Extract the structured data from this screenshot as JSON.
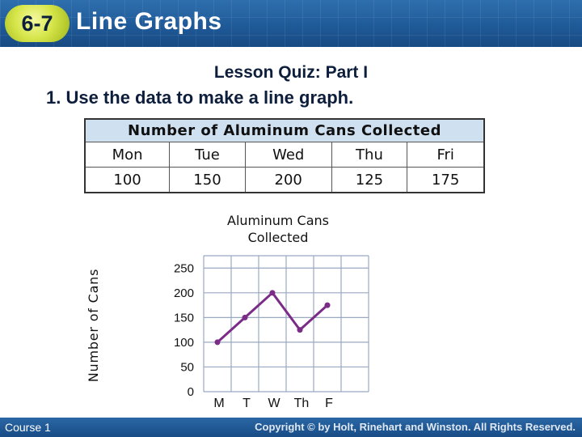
{
  "header": {
    "lesson_number": "6-7",
    "lesson_title": "Line Graphs"
  },
  "quiz": {
    "heading": "Lesson Quiz: Part I",
    "question": "1. Use the data to make a line graph."
  },
  "table": {
    "caption": "Number of Aluminum Cans Collected",
    "days": [
      "Mon",
      "Tue",
      "Wed",
      "Thu",
      "Fri"
    ],
    "values": [
      "100",
      "150",
      "200",
      "125",
      "175"
    ]
  },
  "chart_data": {
    "type": "line",
    "title_lines": [
      "Aluminum Cans",
      "Collected"
    ],
    "ylabel": "Number of Cans",
    "xlabel": "",
    "categories": [
      "M",
      "T",
      "W",
      "Th",
      "F"
    ],
    "values": [
      100,
      150,
      200,
      125,
      175
    ],
    "yticks": [
      0,
      50,
      100,
      150,
      200,
      250
    ],
    "ylim": [
      0,
      275
    ],
    "grid": true,
    "line_color": "#7a2c86",
    "point_color": "#7a2c86"
  },
  "footer": {
    "course": "Course 1",
    "copyright": "Copyright © by Holt, Rinehart and Winston. All Rights Reserved."
  }
}
